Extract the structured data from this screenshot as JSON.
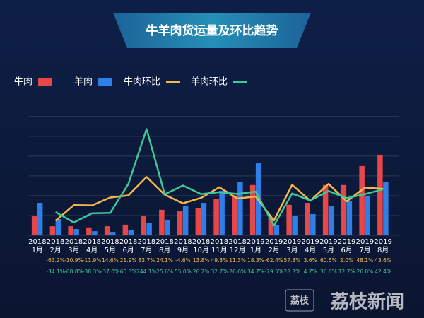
{
  "chart_data": {
    "type": "combo",
    "title": "牛羊肉货运量及环比趋势",
    "categories": [
      [
        "2018",
        "1月"
      ],
      [
        "2018",
        "2月"
      ],
      [
        "2018",
        "3月"
      ],
      [
        "2018",
        "4月"
      ],
      [
        "2018",
        "5月"
      ],
      [
        "2018",
        "6月"
      ],
      [
        "2018",
        "7月"
      ],
      [
        "2018",
        "8月"
      ],
      [
        "2018",
        "9月"
      ],
      [
        "2018",
        "10月"
      ],
      [
        "2018",
        "11月"
      ],
      [
        "2018",
        "12月"
      ],
      [
        "2019",
        "1月"
      ],
      [
        "2019",
        "2月"
      ],
      [
        "2019",
        "3月"
      ],
      [
        "2019",
        "4月"
      ],
      [
        "2019",
        "5月"
      ],
      [
        "2019",
        "6月"
      ],
      [
        "2019",
        "7月"
      ],
      [
        "2019",
        "8月"
      ]
    ],
    "ylim": [
      0,
      6.1
    ],
    "y2lim": [
      -112,
      293
    ],
    "grid": true,
    "series": [
      {
        "name": "牛肉",
        "type": "bar",
        "color": "#e8474a",
        "values": [
          0.96,
          0.46,
          0.46,
          0.4,
          0.46,
          0.54,
          0.96,
          1.29,
          1.21,
          1.36,
          1.82,
          2.0,
          2.54,
          0.86,
          1.54,
          1.64,
          2.54,
          2.54,
          3.5,
          4.07
        ]
      },
      {
        "name": "羊肉",
        "type": "bar",
        "color": "#2f7fe8",
        "values": [
          1.64,
          0.82,
          0.32,
          0.21,
          0.14,
          0.25,
          0.64,
          0.79,
          1.5,
          1.64,
          2.25,
          2.68,
          3.64,
          0.5,
          1.0,
          1.07,
          1.46,
          1.75,
          2.0,
          2.68
        ]
      },
      {
        "name": "牛肉环比",
        "type": "line",
        "axis": "y2",
        "color": "#f5b84a",
        "values": [
          null,
          -63.2,
          -10.9,
          -11.9,
          14.6,
          21.9,
          83.7,
          24.1,
          -4.6,
          13.8,
          49.3,
          11.3,
          18.3,
          -62.4,
          57.3,
          3.6,
          60.5,
          2.0,
          48.1,
          43.6
        ],
        "value_labels": [
          null,
          "-63.2%",
          "-10.9%",
          "-11.9%",
          "14.6%",
          "21.9%",
          "83.7%",
          "24.1%",
          "-4.6%",
          "13.8%",
          "49.3%",
          "11.3%",
          "18.3%",
          "-62.4%",
          "57.3%",
          "3.6%",
          "60.5%",
          "2.0%",
          "48.1%",
          "43.6%"
        ]
      },
      {
        "name": "羊肉环比",
        "type": "line",
        "axis": "y2",
        "color": "#3fc79a",
        "values": [
          null,
          -34.1,
          -68.8,
          -38.3,
          -37.0,
          60.3,
          244.1,
          25.6,
          55.0,
          26.2,
          32.7,
          26.6,
          34.7,
          -79.5,
          28.3,
          4.7,
          36.6,
          12.7,
          26.0,
          42.4
        ],
        "value_labels": [
          null,
          "-34.1%",
          "-68.8%",
          "-38.3%",
          "-37.0%",
          "60.3%",
          "244.1%",
          "25.6%",
          "55.0%",
          "26.2%",
          "32.7%",
          "26.6%",
          "34.7%",
          "-79.5%",
          "28.3%",
          "4.7%",
          "36.6%",
          "12.7%",
          "26.0%",
          "42.4%"
        ]
      }
    ],
    "watermark": "荔枝新闻",
    "logo": "荔枝"
  }
}
